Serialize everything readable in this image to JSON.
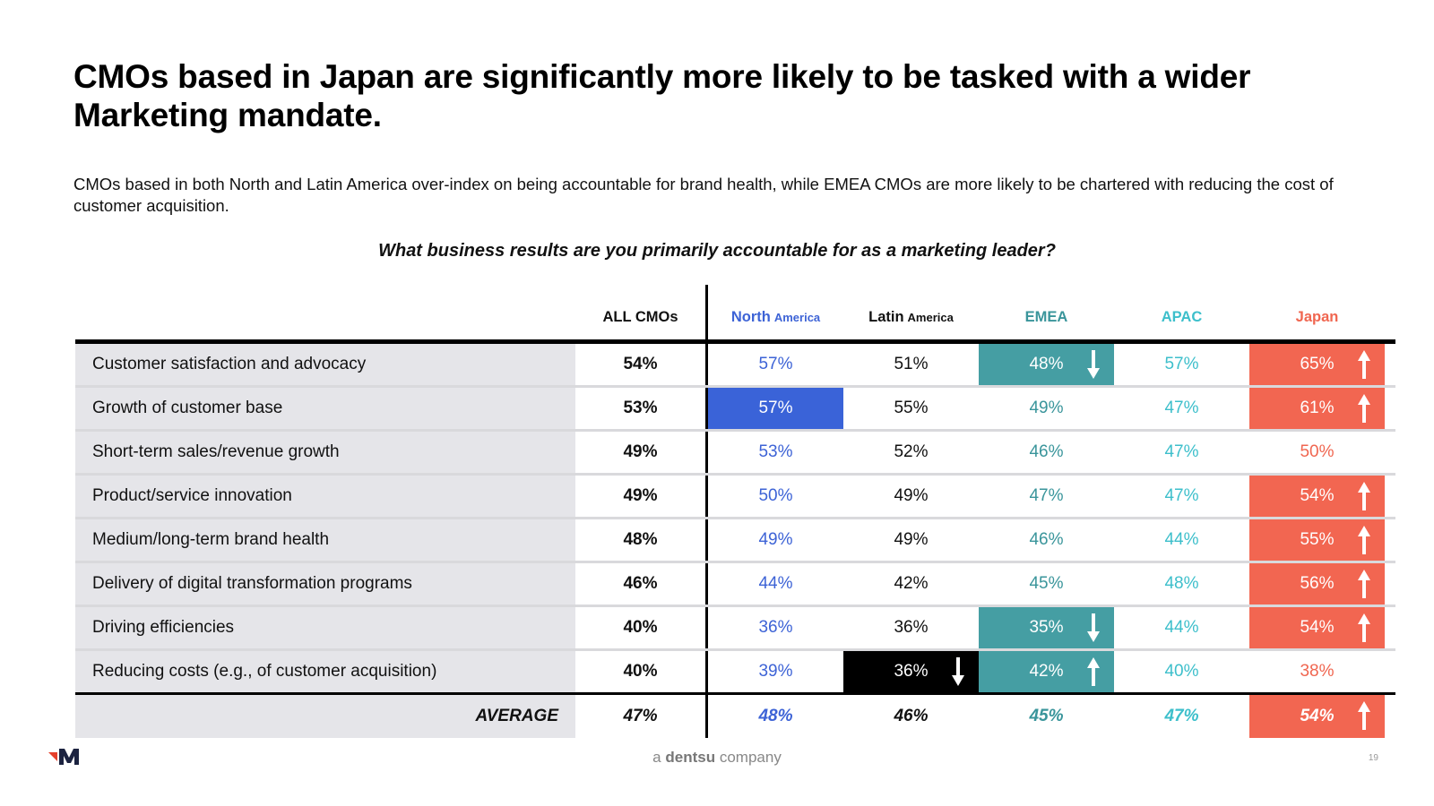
{
  "title": "CMOs based in Japan are significantly more likely to be tasked with a wider Marketing mandate.",
  "subtitle": "CMOs based in both North and Latin America over-index on being accountable for brand health, while EMEA CMOs are more likely to be chartered with reducing the cost of customer acquisition.",
  "question": "What business results are you primarily accountable for as a marketing leader?",
  "columns": {
    "all": "ALL CMOs",
    "na": "North",
    "na_small": "America",
    "la": "Latin",
    "la_small": "America",
    "emea": "EMEA",
    "apac": "APAC",
    "jp": "Japan"
  },
  "colors": {
    "na": "#3d63d6",
    "na_highlight": "#3a63d8",
    "la_highlight": "#000000",
    "emea": "#3a959b",
    "emea_highlight": "#459ea3",
    "apac": "#3dbfcb",
    "jp": "#f06650",
    "jp_highlight": "#f26651",
    "label_bg": "#e5e5e9"
  },
  "rows": [
    {
      "label": "Customer satisfaction and advocacy",
      "all": "54%",
      "na": "57%",
      "la": "51%",
      "emea": "48%",
      "apac": "57%",
      "jp": "65%"
    },
    {
      "label": "Growth of customer base",
      "all": "53%",
      "na": "57%",
      "la": "55%",
      "emea": "49%",
      "apac": "47%",
      "jp": "61%"
    },
    {
      "label": "Short-term sales/revenue growth",
      "all": "49%",
      "na": "53%",
      "la": "52%",
      "emea": "46%",
      "apac": "47%",
      "jp": "50%"
    },
    {
      "label": "Product/service innovation",
      "all": "49%",
      "na": "50%",
      "la": "49%",
      "emea": "47%",
      "apac": "47%",
      "jp": "54%"
    },
    {
      "label": "Medium/long-term brand health",
      "all": "48%",
      "na": "49%",
      "la": "49%",
      "emea": "46%",
      "apac": "44%",
      "jp": "55%"
    },
    {
      "label": "Delivery of digital transformation programs",
      "all": "46%",
      "na": "44%",
      "la": "42%",
      "emea": "45%",
      "apac": "48%",
      "jp": "56%"
    },
    {
      "label": "Driving efficiencies",
      "all": "40%",
      "na": "36%",
      "la": "36%",
      "emea": "35%",
      "apac": "44%",
      "jp": "54%"
    },
    {
      "label": "Reducing costs (e.g., of customer acquisition)",
      "all": "40%",
      "na": "39%",
      "la": "36%",
      "emea": "42%",
      "apac": "40%",
      "jp": "38%"
    }
  ],
  "average": {
    "label": "AVERAGE",
    "all": "47%",
    "na": "48%",
    "la": "46%",
    "emea": "45%",
    "apac": "47%",
    "jp": "54%"
  },
  "footer": {
    "brand_prefix": "a",
    "brand_name": "dentsu",
    "brand_suffix": "company",
    "page_number": "19"
  },
  "icons": {
    "logo": "merkle-logo",
    "up": "arrow-up-icon",
    "down": "arrow-down-icon"
  }
}
